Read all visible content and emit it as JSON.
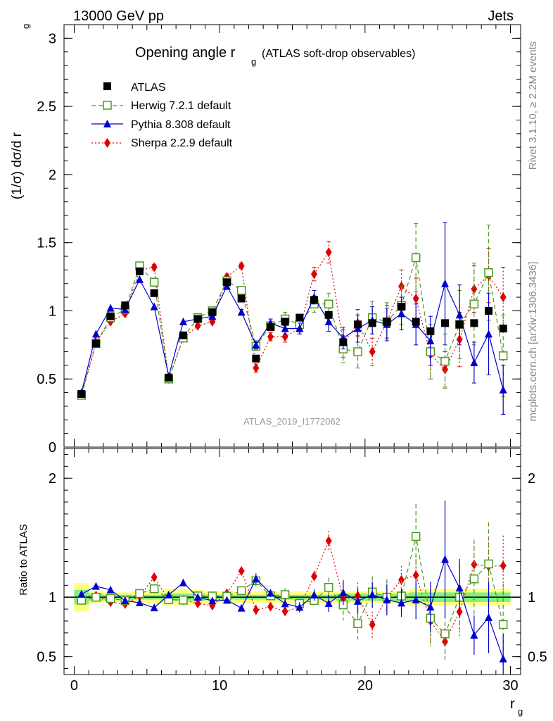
{
  "header": {
    "left": "13000 GeV pp",
    "right": "Jets"
  },
  "side_labels": {
    "top": "Rivet 3.1.10, ≥ 2.2M events",
    "bottom": "mcplots.cern.ch [arXiv:1306.3436]"
  },
  "watermark": "ATLAS_2019_I1772062",
  "chart_data": [
    {
      "type": "line",
      "panel": "main",
      "title": "Opening angle r",
      "title_sub": "g",
      "title_suffix": "(ATLAS soft-drop observables)",
      "ylabel": "(1/σ) dσ/d r",
      "ylabel_sub": "g",
      "xlim": [
        -0.7,
        30.7
      ],
      "ylim": [
        0,
        3.1
      ],
      "yticks": [
        {
          "v": 0,
          "label": "0"
        },
        {
          "v": 0.5,
          "label": "0.5"
        },
        {
          "v": 1,
          "label": "1"
        },
        {
          "v": 1.5,
          "label": "1.5"
        },
        {
          "v": 2,
          "label": "2"
        },
        {
          "v": 2.5,
          "label": "2.5"
        },
        {
          "v": 3,
          "label": "3"
        }
      ],
      "x": [
        0.5,
        1.5,
        2.5,
        3.5,
        4.5,
        5.5,
        6.5,
        7.5,
        8.5,
        9.5,
        10.5,
        11.5,
        12.5,
        13.5,
        14.5,
        15.5,
        16.5,
        17.5,
        18.5,
        19.5,
        20.5,
        21.5,
        22.5,
        23.5,
        24.5,
        25.5,
        26.5,
        27.5,
        28.5,
        29.5
      ],
      "series": [
        {
          "name": "ATLAS",
          "color": "#000000",
          "marker": "square",
          "values": [
            0.39,
            0.76,
            0.96,
            1.04,
            1.29,
            1.13,
            0.51,
            0.82,
            0.94,
            0.99,
            1.21,
            1.09,
            0.65,
            0.88,
            0.92,
            0.95,
            1.08,
            0.97,
            0.77,
            0.9,
            0.91,
            0.92,
            1.03,
            0.92,
            0.85,
            0.91,
            0.9,
            0.91,
            1.0,
            0.87
          ]
        },
        {
          "name": "Herwig 7.2.1 default",
          "color": "#4a9a1e",
          "marker": "open-square",
          "dash": "6,4",
          "values": [
            0.38,
            0.76,
            0.95,
            1.01,
            1.33,
            1.21,
            0.5,
            0.8,
            0.95,
            1.0,
            1.22,
            1.15,
            0.74,
            0.89,
            0.94,
            0.9,
            1.05,
            1.05,
            0.72,
            0.7,
            0.95,
            0.92,
            1.04,
            1.39,
            0.7,
            0.63,
            0.9,
            1.05,
            1.28,
            0.67
          ],
          "errors": [
            0.01,
            0.01,
            0.01,
            0.01,
            0.01,
            0.01,
            0.01,
            0.01,
            0.01,
            0.01,
            0.02,
            0.02,
            0.03,
            0.03,
            0.05,
            0.05,
            0.06,
            0.08,
            0.1,
            0.12,
            0.12,
            0.14,
            0.14,
            0.25,
            0.2,
            0.2,
            0.25,
            0.3,
            0.35,
            0.3
          ]
        },
        {
          "name": "Pythia 8.308 default",
          "color": "#0000cc",
          "marker": "triangle",
          "values": [
            0.4,
            0.83,
            1.02,
            1.01,
            1.23,
            1.03,
            0.52,
            0.92,
            0.94,
            0.96,
            1.18,
            0.99,
            0.75,
            0.91,
            0.87,
            0.87,
            1.1,
            0.92,
            0.8,
            0.87,
            0.93,
            0.9,
            0.98,
            0.9,
            0.78,
            1.2,
            0.97,
            0.62,
            0.83,
            0.42
          ],
          "errors": [
            0.01,
            0.01,
            0.01,
            0.01,
            0.01,
            0.01,
            0.01,
            0.01,
            0.01,
            0.01,
            0.02,
            0.02,
            0.03,
            0.03,
            0.04,
            0.04,
            0.05,
            0.07,
            0.08,
            0.1,
            0.1,
            0.12,
            0.12,
            0.15,
            0.18,
            0.45,
            0.22,
            0.15,
            0.3,
            0.18
          ]
        },
        {
          "name": "Sherpa 2.2.9 default",
          "color": "#e00000",
          "marker": "diamond",
          "dash": "2,3",
          "values": [
            0.39,
            0.77,
            0.92,
            0.98,
            1.3,
            1.32,
            0.5,
            0.8,
            0.89,
            0.92,
            1.25,
            1.33,
            0.58,
            0.81,
            0.81,
            0.87,
            1.27,
            1.43,
            0.76,
            0.91,
            0.7,
            0.92,
            1.18,
            1.09,
            0.68,
            0.57,
            0.79,
            1.16,
            1.26,
            1.1
          ],
          "errors": [
            0.01,
            0.01,
            0.01,
            0.01,
            0.02,
            0.02,
            0.01,
            0.01,
            0.01,
            0.01,
            0.02,
            0.02,
            0.03,
            0.03,
            0.04,
            0.04,
            0.05,
            0.08,
            0.1,
            0.1,
            0.1,
            0.12,
            0.12,
            0.15,
            0.18,
            0.13,
            0.2,
            0.17,
            0.2,
            0.22
          ]
        }
      ],
      "legend_position": "top-left"
    },
    {
      "type": "line",
      "panel": "ratio",
      "ylabel": "Ratio to ATLAS",
      "xlabel": "r",
      "xlabel_sub": "g",
      "xlim": [
        -0.7,
        30.7
      ],
      "ylim": [
        0.35,
        2.25
      ],
      "xticks": [
        {
          "v": 0,
          "label": "0"
        },
        {
          "v": 10,
          "label": "10"
        },
        {
          "v": 20,
          "label": "20"
        },
        {
          "v": 30,
          "label": "30"
        }
      ],
      "yticks": [
        {
          "v": 0.5,
          "label": "0.5"
        },
        {
          "v": 1,
          "label": "1"
        },
        {
          "v": 2,
          "label": "2"
        }
      ],
      "band_yellow": [
        0.12,
        0.05,
        0.04,
        0.04,
        0.05,
        0.05,
        0.07,
        0.07,
        0.06,
        0.05,
        0.05,
        0.05,
        0.05,
        0.05,
        0.05,
        0.05,
        0.05,
        0.05,
        0.05,
        0.05,
        0.05,
        0.05,
        0.05,
        0.07,
        0.07,
        0.07,
        0.07,
        0.07,
        0.07,
        0.07
      ],
      "band_green": [
        0.06,
        0.03,
        0.02,
        0.02,
        0.02,
        0.02,
        0.03,
        0.03,
        0.03,
        0.02,
        0.02,
        0.02,
        0.02,
        0.02,
        0.02,
        0.02,
        0.02,
        0.02,
        0.03,
        0.03,
        0.03,
        0.03,
        0.03,
        0.04,
        0.04,
        0.04,
        0.04,
        0.04,
        0.04,
        0.04
      ]
    }
  ]
}
